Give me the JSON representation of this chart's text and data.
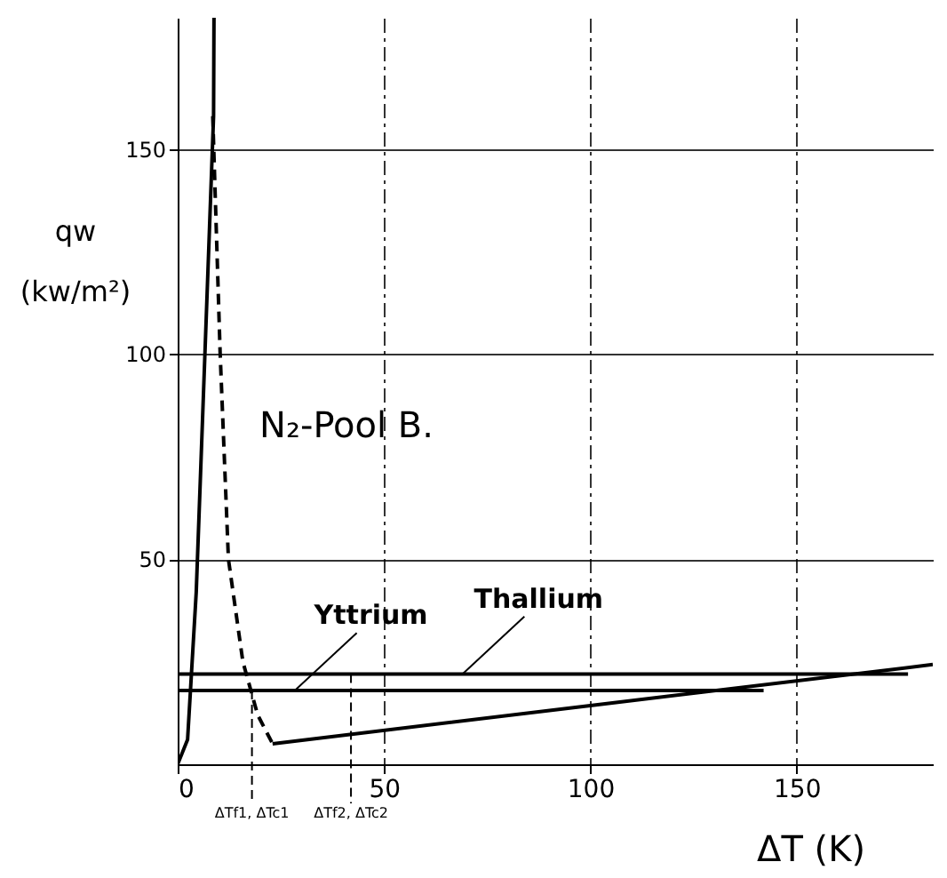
{
  "chart_data": {
    "type": "line",
    "xlabel": "ΔT (K)",
    "ylabel": "qw (kw/m²)",
    "xlim": [
      0,
      183
    ],
    "ylim": [
      0,
      182
    ],
    "xticks": [
      0,
      50,
      100,
      150
    ],
    "yticks": [
      50,
      100,
      150
    ],
    "grid": true,
    "series": [
      {
        "color": "#000000",
        "line_style": "solid",
        "x": [
          0,
          2.4,
          4.5,
          6.6,
          8.7,
          8.8
        ],
        "values": [
          0,
          6,
          42,
          100,
          158,
          182
        ]
      },
      {
        "color": "#000000",
        "line_style": "dashed",
        "x": [
          8.5,
          10.3,
          12.3,
          15.8,
          19.4,
          23
        ],
        "values": [
          158,
          100,
          50,
          25,
          12,
          5
        ]
      },
      {
        "color": "#000000",
        "line_style": "solid",
        "x": [
          23,
          100,
          183
        ],
        "values": [
          5,
          14.3,
          24.3
        ]
      },
      {
        "name": "Yttrium",
        "color": "#000000",
        "line_style": "solid",
        "x": [
          0,
          142
        ],
        "values": [
          18,
          18
        ]
      },
      {
        "name": "Thallium",
        "color": "#000000",
        "line_style": "solid",
        "x": [
          0,
          177
        ],
        "values": [
          22,
          22
        ]
      }
    ],
    "annotations": [
      "N₂-Pool B.",
      {
        "text": "ΔTf1, ΔTc1",
        "x": 18,
        "y": 18
      },
      {
        "text": "ΔTf2, ΔTc2",
        "x": 42,
        "y": 22
      }
    ]
  }
}
